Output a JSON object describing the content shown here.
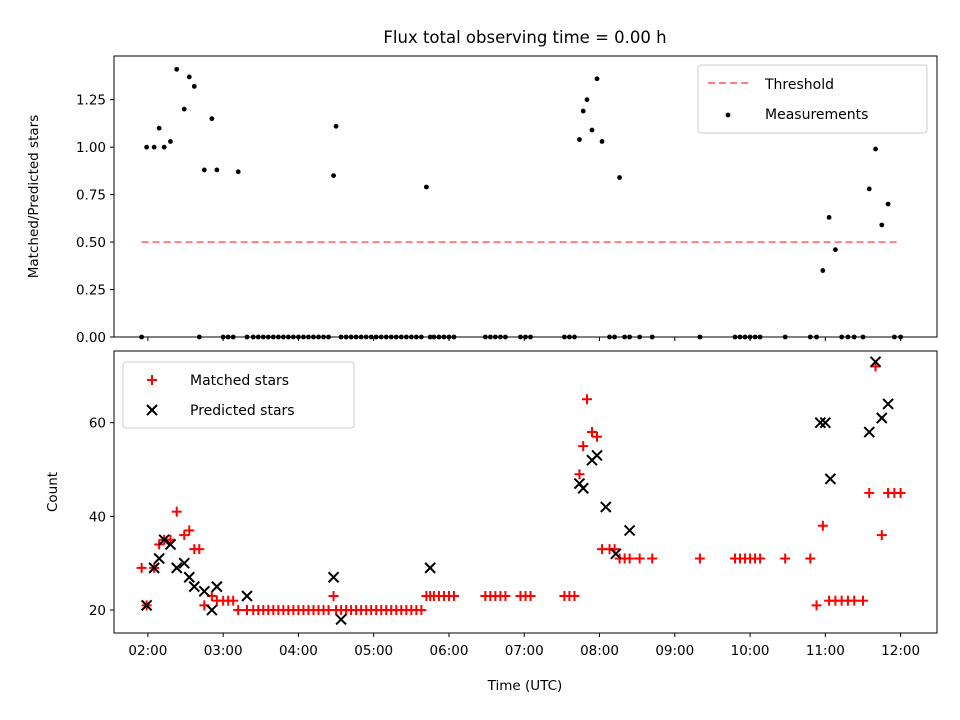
{
  "chart_data": [
    {
      "type": "scatter",
      "title": "Flux total observing time = 0.00 h",
      "ylabel": "Matched/Predicted stars",
      "xlabel": "",
      "xlim": [
        "01:33",
        "12:29"
      ],
      "ylim": [
        0,
        1.48
      ],
      "yticks": [
        0.0,
        0.25,
        0.5,
        0.75,
        1.0,
        1.25
      ],
      "ytick_labels": [
        "0.00",
        "0.25",
        "0.50",
        "0.75",
        "1.00",
        "1.25"
      ],
      "xtick_labels": [],
      "legend_position": "upper right",
      "series": [
        {
          "name": "Threshold",
          "kind": "dashed-line",
          "color": "#ff7f7f",
          "x": [
            "01:55",
            "12:00"
          ],
          "y": [
            0.5,
            0.5
          ]
        },
        {
          "name": "Measurements",
          "kind": "dots",
          "color": "#000000",
          "x": [
            "01:55",
            "01:59",
            "02:05",
            "02:09",
            "02:13",
            "02:18",
            "02:23",
            "02:29",
            "02:33",
            "02:37",
            "02:41",
            "02:45",
            "02:51",
            "02:55",
            "03:00",
            "03:04",
            "03:08",
            "03:12",
            "03:19",
            "03:24",
            "03:28",
            "03:32",
            "03:36",
            "03:40",
            "03:44",
            "03:48",
            "03:52",
            "03:56",
            "04:00",
            "04:04",
            "04:08",
            "04:12",
            "04:16",
            "04:20",
            "04:24",
            "04:28",
            "04:30",
            "04:34",
            "04:38",
            "04:42",
            "04:46",
            "04:50",
            "04:54",
            "04:58",
            "05:02",
            "05:06",
            "05:10",
            "05:14",
            "05:18",
            "05:22",
            "05:26",
            "05:30",
            "05:34",
            "05:38",
            "05:42",
            "05:45",
            "05:48",
            "05:52",
            "05:56",
            "06:00",
            "06:04",
            "06:29",
            "06:33",
            "06:37",
            "06:41",
            "06:45",
            "06:57",
            "07:01",
            "07:05",
            "07:32",
            "07:36",
            "07:40",
            "07:44",
            "07:47",
            "07:50",
            "07:54",
            "07:58",
            "08:02",
            "08:08",
            "08:12",
            "08:16",
            "08:20",
            "08:24",
            "08:32",
            "08:42",
            "09:20",
            "09:48",
            "09:52",
            "09:56",
            "10:00",
            "10:04",
            "10:08",
            "10:28",
            "10:48",
            "10:53",
            "10:58",
            "11:03",
            "11:08",
            "11:13",
            "11:18",
            "11:23",
            "11:30",
            "11:35",
            "11:40",
            "11:45",
            "11:50",
            "11:55",
            "12:00"
          ],
          "y": [
            0,
            1.0,
            1.0,
            1.1,
            1.0,
            1.03,
            1.41,
            1.2,
            1.37,
            1.32,
            0,
            0.88,
            1.15,
            0.88,
            0,
            0,
            0,
            0.87,
            0,
            0,
            0,
            0,
            0,
            0,
            0,
            0,
            0,
            0,
            0,
            0,
            0,
            0,
            0,
            0,
            0,
            0.85,
            1.11,
            0,
            0,
            0,
            0,
            0,
            0,
            0,
            0,
            0,
            0,
            0,
            0,
            0,
            0,
            0,
            0,
            0,
            0.79,
            0,
            0,
            0,
            0,
            0,
            0,
            0,
            0,
            0,
            0,
            0,
            0,
            0,
            0,
            0,
            0,
            0,
            1.04,
            1.19,
            1.25,
            1.09,
            1.36,
            1.03,
            0,
            0,
            0.84,
            0,
            0,
            0,
            0,
            0,
            0,
            0,
            0,
            0,
            0,
            0,
            0,
            0,
            0,
            0.35,
            0.63,
            0.46,
            0,
            0,
            0,
            0,
            0.78,
            0.99,
            0.59,
            0.7,
            0,
            0
          ]
        }
      ]
    },
    {
      "type": "scatter",
      "title": "",
      "ylabel": "Count",
      "xlabel": "Time (UTC)",
      "xlim": [
        "01:33",
        "12:29"
      ],
      "ylim": [
        15.1,
        75.3
      ],
      "yticks": [
        20,
        40,
        60
      ],
      "ytick_labels": [
        "20",
        "40",
        "60"
      ],
      "xtick_labels": [
        "02:00",
        "03:00",
        "04:00",
        "05:00",
        "06:00",
        "07:00",
        "08:00",
        "09:00",
        "10:00",
        "11:00",
        "12:00"
      ],
      "legend_position": "upper left",
      "series": [
        {
          "name": "Matched stars",
          "marker": "+",
          "color": "#ff0000",
          "x": [
            "01:55",
            "01:59",
            "02:05",
            "02:09",
            "02:13",
            "02:18",
            "02:23",
            "02:29",
            "02:33",
            "02:37",
            "02:41",
            "02:45",
            "02:51",
            "02:55",
            "03:00",
            "03:04",
            "03:08",
            "03:12",
            "03:19",
            "03:24",
            "03:28",
            "03:32",
            "03:36",
            "03:40",
            "03:44",
            "03:48",
            "03:52",
            "03:56",
            "04:00",
            "04:04",
            "04:08",
            "04:12",
            "04:16",
            "04:20",
            "04:24",
            "04:28",
            "04:30",
            "04:34",
            "04:38",
            "04:42",
            "04:46",
            "04:50",
            "04:54",
            "04:58",
            "05:02",
            "05:06",
            "05:10",
            "05:14",
            "05:18",
            "05:22",
            "05:26",
            "05:30",
            "05:34",
            "05:38",
            "05:42",
            "05:45",
            "05:48",
            "05:52",
            "05:56",
            "06:00",
            "06:04",
            "06:29",
            "06:33",
            "06:37",
            "06:41",
            "06:45",
            "06:57",
            "07:01",
            "07:05",
            "07:32",
            "07:36",
            "07:40",
            "07:44",
            "07:47",
            "07:50",
            "07:54",
            "07:58",
            "08:02",
            "08:08",
            "08:12",
            "08:16",
            "08:20",
            "08:24",
            "08:32",
            "08:42",
            "09:20",
            "09:48",
            "09:52",
            "09:56",
            "10:00",
            "10:04",
            "10:08",
            "10:28",
            "10:48",
            "10:53",
            "10:58",
            "11:03",
            "11:08",
            "11:13",
            "11:18",
            "11:23",
            "11:30",
            "11:35",
            "11:40",
            "11:45",
            "11:50",
            "11:55",
            "12:00"
          ],
          "y": [
            29,
            21,
            29,
            34,
            35,
            35,
            41,
            36,
            37,
            33,
            33,
            21,
            23,
            22,
            22,
            22,
            22,
            20,
            20,
            20,
            20,
            20,
            20,
            20,
            20,
            20,
            20,
            20,
            20,
            20,
            20,
            20,
            20,
            20,
            20,
            23,
            20,
            20,
            20,
            20,
            20,
            20,
            20,
            20,
            20,
            20,
            20,
            20,
            20,
            20,
            20,
            20,
            20,
            20,
            23,
            23,
            23,
            23,
            23,
            23,
            23,
            23,
            23,
            23,
            23,
            23,
            23,
            23,
            23,
            23,
            23,
            23,
            49,
            55,
            65,
            58,
            57,
            33,
            33,
            33,
            31,
            31,
            31,
            31,
            31,
            31,
            31,
            31,
            31,
            31,
            31,
            31,
            31,
            31,
            21,
            38,
            22,
            22,
            22,
            22,
            22,
            22,
            45,
            72,
            36,
            45,
            45,
            45
          ]
        },
        {
          "name": "Predicted stars",
          "marker": "x",
          "color": "#000000",
          "x": [
            "01:59",
            "02:05",
            "02:09",
            "02:13",
            "02:18",
            "02:23",
            "02:29",
            "02:33",
            "02:37",
            "02:45",
            "02:51",
            "02:55",
            "03:19",
            "04:28",
            "04:34",
            "05:45",
            "07:44",
            "07:47",
            "07:54",
            "07:58",
            "08:05",
            "08:13",
            "08:24",
            "10:56",
            "11:00",
            "11:04",
            "11:35",
            "11:40",
            "11:45",
            "11:50"
          ],
          "y": [
            21,
            29,
            31,
            35,
            34,
            29,
            30,
            27,
            25,
            24,
            20,
            25,
            23,
            27,
            18,
            29,
            47,
            46,
            52,
            53,
            42,
            32,
            37,
            60,
            60,
            48,
            58,
            73,
            61,
            64
          ]
        }
      ]
    }
  ]
}
